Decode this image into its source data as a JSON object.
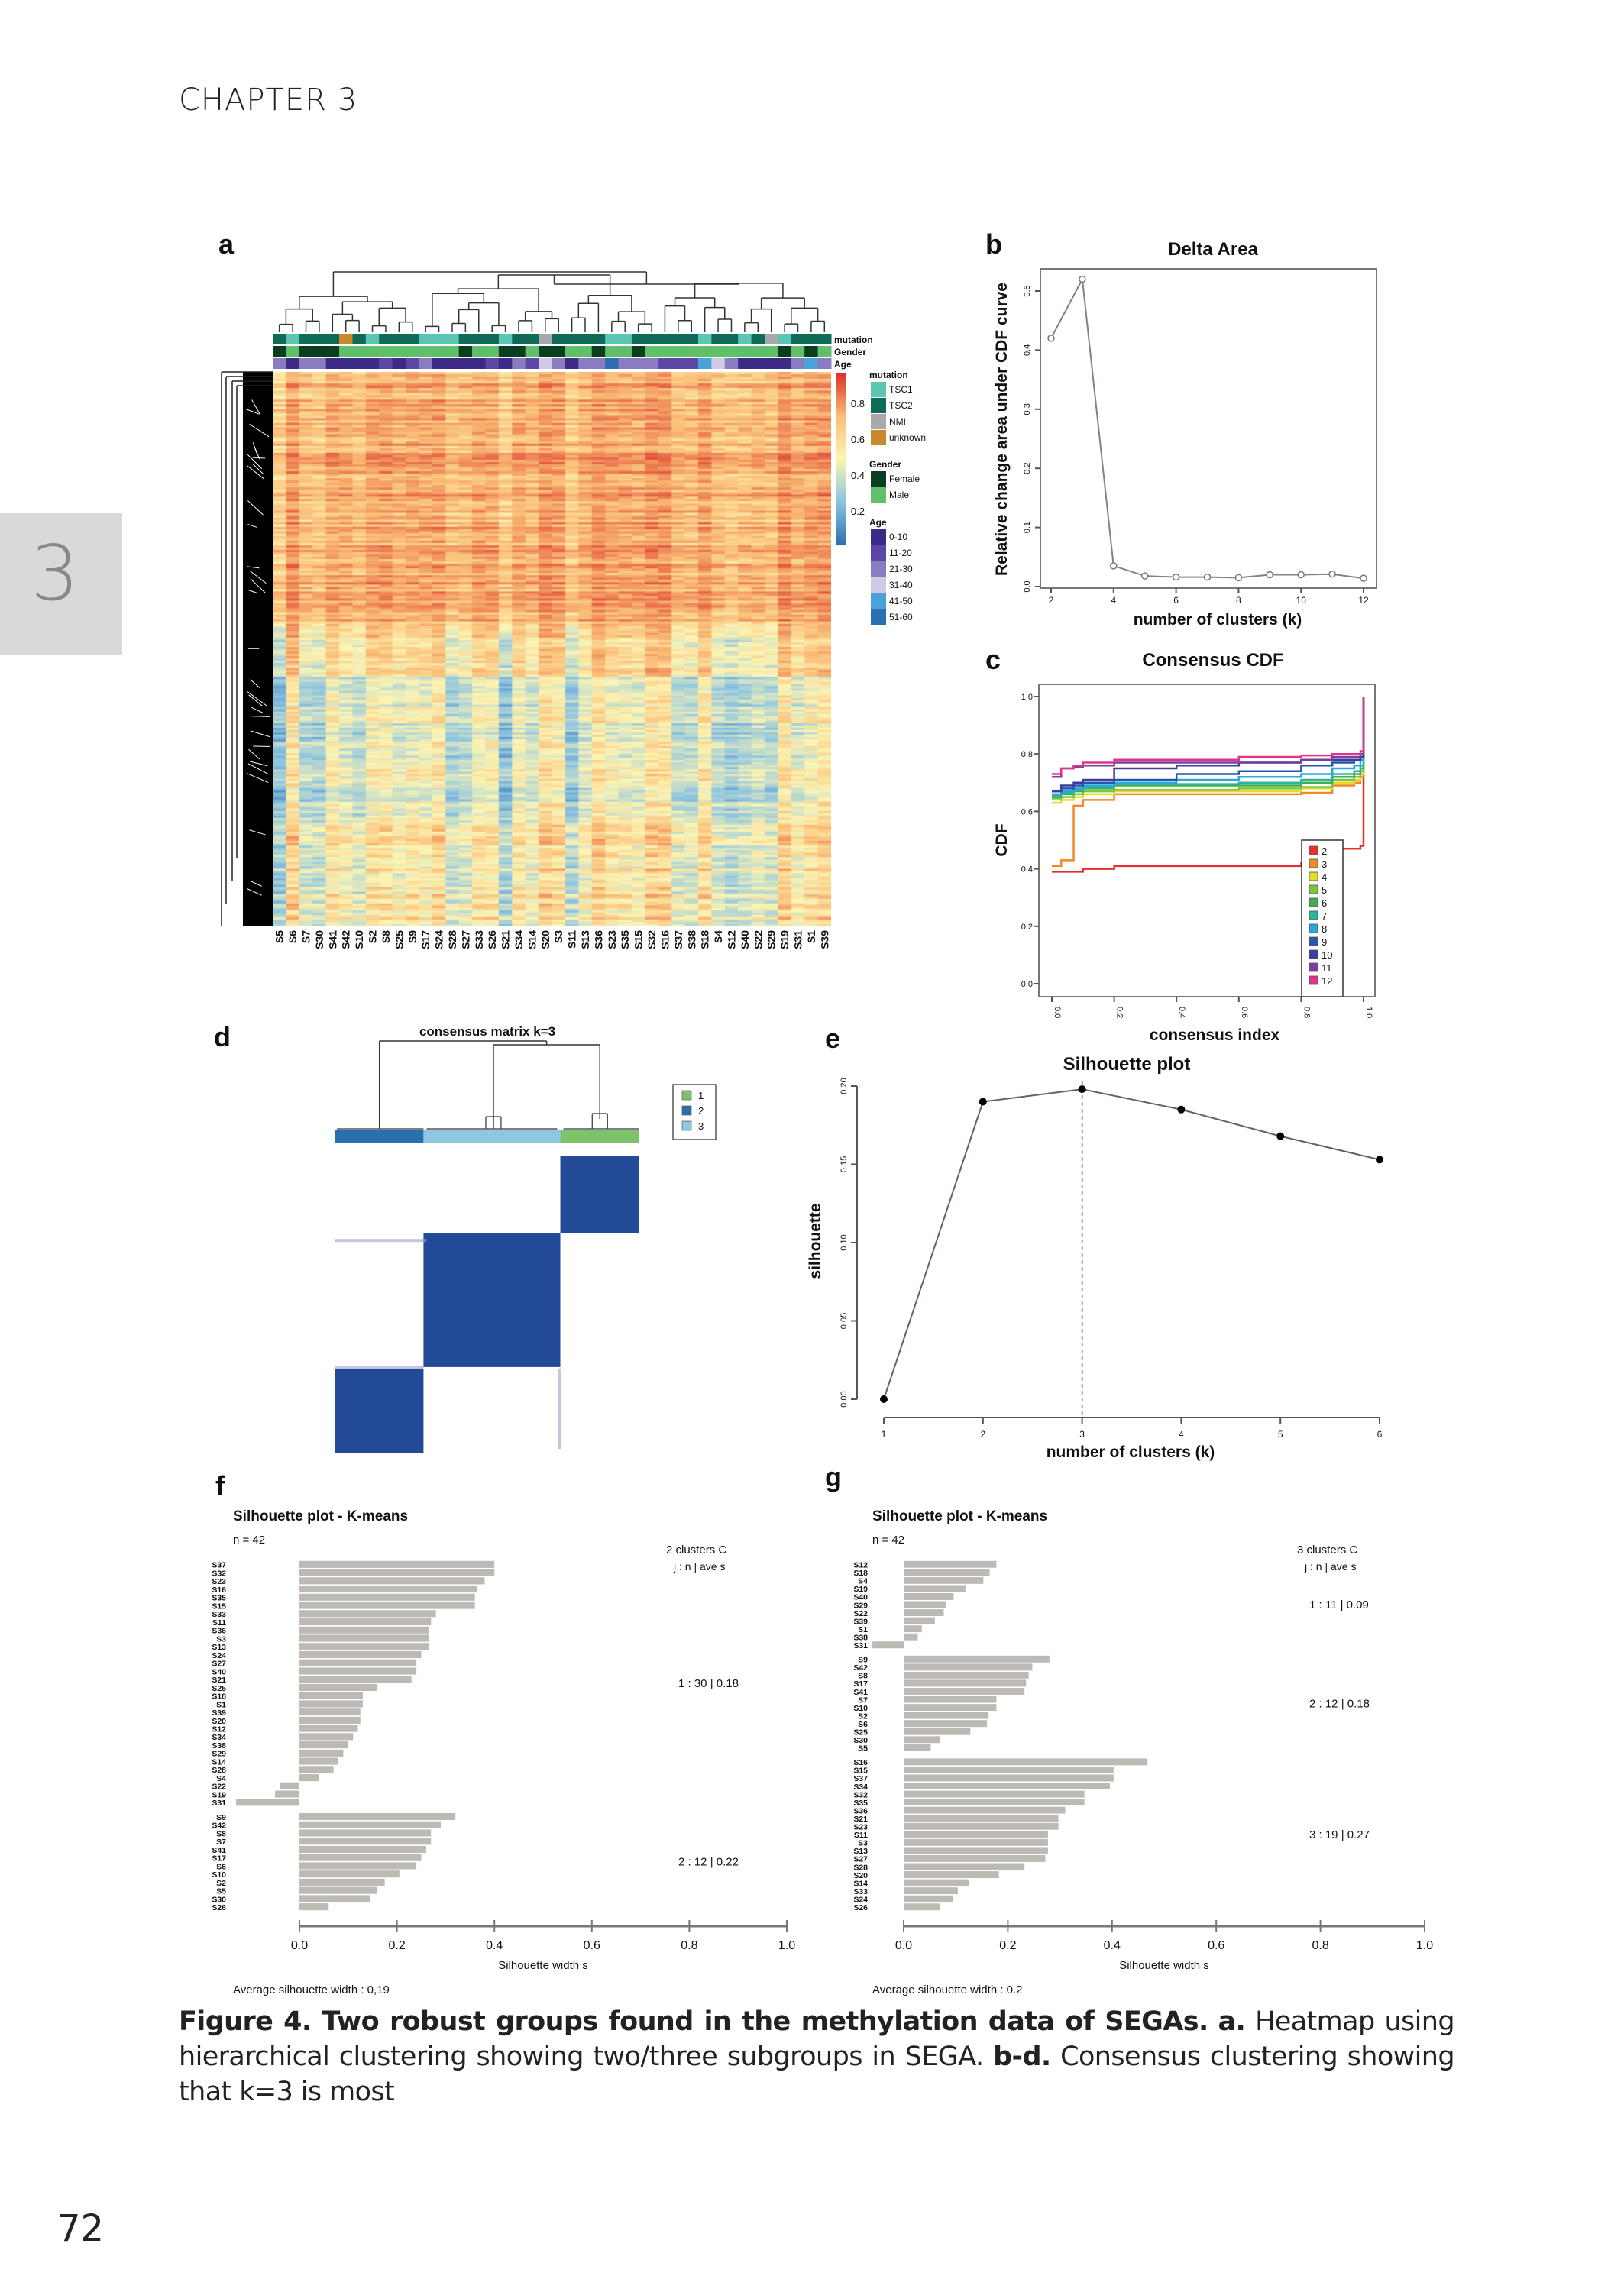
{
  "header": {
    "chapter": "CHAPTER 3",
    "side_tab": "3"
  },
  "page_number": "72",
  "caption": {
    "figure_label": "Figure 4. Two robust groups found in the methylation data of SEGAs.",
    "a_label": "a.",
    "a_text": "Heatmap using hierarchical clustering showing two/three subgroups in SEGA.",
    "bd_label": "b-d.",
    "bd_text": "Consensus clustering showing that k=3 is most"
  },
  "panels": {
    "a": "a",
    "b": "b",
    "c": "c",
    "d": "d",
    "e": "e",
    "f": "f",
    "g": "g"
  },
  "colors": {
    "mutation": {
      "TSC1": "#5cc6b4",
      "TSC2": "#0d6b57",
      "NMI": "#a9a9a9",
      "unknown": "#c98a2b"
    },
    "gender": {
      "Female": "#0b3d20",
      "Male": "#5fbf6a"
    },
    "age": {
      "0-10": "#3b2a86",
      "11-20": "#5c47a6",
      "21-30": "#8a7cc0",
      "31-40": "#cfcbe6",
      "41-50": "#4aa3d8",
      "51-60": "#2c6fb3"
    },
    "cluster": {
      "1": "#7cc36b",
      "2": "#2a6fae",
      "3": "#8ec7e0"
    },
    "matrix_block": "#234a96",
    "bar": "#bdbab6"
  },
  "heatmap": {
    "annotation_labels": [
      "mutation",
      "Gender",
      "Age"
    ],
    "scale_ticks": [
      "0.8",
      "0.6",
      "0.4",
      "0.2"
    ],
    "legend": {
      "mutation": {
        "title": "mutation",
        "items": [
          "TSC1",
          "TSC2",
          "NMI",
          "unknown"
        ]
      },
      "gender": {
        "title": "Gender",
        "items": [
          "Female",
          "Male"
        ]
      },
      "age": {
        "title": "Age",
        "items": [
          "0-10",
          "11-20",
          "21-30",
          "31-40",
          "41-50",
          "51-60"
        ]
      }
    },
    "samples": [
      "S5",
      "S6",
      "S7",
      "S30",
      "S41",
      "S42",
      "S10",
      "S2",
      "S8",
      "S25",
      "S9",
      "S17",
      "S24",
      "S28",
      "S27",
      "S33",
      "S26",
      "S21",
      "S34",
      "S14",
      "S20",
      "S3",
      "S11",
      "S13",
      "S36",
      "S23",
      "S35",
      "S15",
      "S32",
      "S16",
      "S37",
      "S38",
      "S18",
      "S4",
      "S12",
      "S40",
      "S22",
      "S29",
      "S19",
      "S31",
      "S1",
      "S39"
    ],
    "mutation": [
      "TSC2",
      "TSC1",
      "TSC2",
      "TSC2",
      "TSC2",
      "unknown",
      "TSC2",
      "TSC1",
      "TSC2",
      "TSC2",
      "TSC2",
      "TSC1",
      "TSC1",
      "TSC1",
      "TSC2",
      "TSC2",
      "TSC2",
      "TSC1",
      "TSC2",
      "TSC2",
      "NMI",
      "TSC2",
      "TSC2",
      "TSC2",
      "TSC2",
      "TSC1",
      "TSC1",
      "TSC2",
      "TSC2",
      "TSC2",
      "TSC2",
      "TSC2",
      "TSC1",
      "TSC2",
      "TSC2",
      "TSC1",
      "TSC2",
      "NMI",
      "TSC1",
      "TSC2",
      "TSC2",
      "TSC2"
    ],
    "gender": [
      "Female",
      "Male",
      "Female",
      "Female",
      "Female",
      "Male",
      "Male",
      "Male",
      "Male",
      "Male",
      "Male",
      "Male",
      "Male",
      "Male",
      "Female",
      "Male",
      "Male",
      "Female",
      "Female",
      "Male",
      "Female",
      "Female",
      "Male",
      "Male",
      "Female",
      "Male",
      "Male",
      "Female",
      "Male",
      "Male",
      "Male",
      "Male",
      "Male",
      "Male",
      "Male",
      "Male",
      "Male",
      "Male",
      "Female",
      "Male",
      "Female",
      "Male"
    ],
    "age": [
      "21-30",
      "0-10",
      "21-30",
      "21-30",
      "0-10",
      "0-10",
      "0-10",
      "0-10",
      "11-20",
      "0-10",
      "11-20",
      "21-30",
      "0-10",
      "0-10",
      "0-10",
      "0-10",
      "11-20",
      "0-10",
      "21-30",
      "11-20",
      "31-40",
      "21-30",
      "0-10",
      "21-30",
      "21-30",
      "51-60",
      "21-30",
      "21-30",
      "21-30",
      "11-20",
      "11-20",
      "11-20",
      "41-50",
      "31-40",
      "21-30",
      "0-10",
      "0-10",
      "0-10",
      "0-10",
      "21-30",
      "41-50",
      "21-30"
    ]
  },
  "chart_data": [
    {
      "id": "b",
      "type": "line",
      "title": "Delta Area",
      "xlabel": "number of clusters (k)",
      "ylabel": "Relative change area under CDF curve",
      "x": [
        2,
        3,
        4,
        5,
        6,
        7,
        8,
        9,
        10,
        11,
        12
      ],
      "values": [
        0.42,
        0.52,
        0.035,
        0.018,
        0.016,
        0.016,
        0.015,
        0.02,
        0.02,
        0.021,
        0.014
      ],
      "xticks": [
        "2",
        "4",
        "6",
        "8",
        "10",
        "12"
      ],
      "yticks": [
        "0.0",
        "0.1",
        "0.2",
        "0.3",
        "0.4",
        "0.5"
      ],
      "xlim": [
        2,
        12
      ],
      "ylim": [
        0,
        0.5
      ],
      "marker": "open-circle",
      "grid": false
    },
    {
      "id": "c",
      "type": "line",
      "title": "Consensus CDF",
      "xlabel": "consensus index",
      "ylabel": "CDF",
      "x": [
        0,
        0.03,
        0.07,
        0.1,
        0.2,
        0.4,
        0.6,
        0.8,
        0.9,
        0.97,
        0.99,
        1.0
      ],
      "series": [
        {
          "name": "2",
          "color": "#e8302a",
          "values": [
            0.39,
            0.39,
            0.39,
            0.4,
            0.41,
            0.41,
            0.41,
            0.42,
            0.47,
            0.47,
            0.48,
            1.0
          ]
        },
        {
          "name": "3",
          "color": "#f08a24",
          "values": [
            0.41,
            0.43,
            0.62,
            0.64,
            0.66,
            0.66,
            0.66,
            0.665,
            0.69,
            0.7,
            0.72,
            1.0
          ]
        },
        {
          "name": "4",
          "color": "#e3dc2a",
          "values": [
            0.63,
            0.64,
            0.65,
            0.66,
            0.67,
            0.67,
            0.67,
            0.68,
            0.7,
            0.71,
            0.73,
            1.0
          ]
        },
        {
          "name": "5",
          "color": "#7cc542",
          "values": [
            0.645,
            0.65,
            0.66,
            0.67,
            0.675,
            0.675,
            0.68,
            0.685,
            0.71,
            0.72,
            0.74,
            1.0
          ]
        },
        {
          "name": "6",
          "color": "#3fae4f",
          "values": [
            0.65,
            0.66,
            0.67,
            0.68,
            0.69,
            0.69,
            0.69,
            0.7,
            0.72,
            0.73,
            0.75,
            1.0
          ]
        },
        {
          "name": "7",
          "color": "#2bb59c",
          "values": [
            0.655,
            0.665,
            0.675,
            0.685,
            0.695,
            0.695,
            0.7,
            0.71,
            0.73,
            0.74,
            0.76,
            1.0
          ]
        },
        {
          "name": "8",
          "color": "#2aa7df",
          "values": [
            0.66,
            0.67,
            0.68,
            0.69,
            0.7,
            0.71,
            0.72,
            0.73,
            0.75,
            0.76,
            0.78,
            1.0
          ]
        },
        {
          "name": "9",
          "color": "#2457a8",
          "values": [
            0.67,
            0.68,
            0.69,
            0.7,
            0.71,
            0.73,
            0.74,
            0.76,
            0.77,
            0.78,
            0.79,
            1.0
          ]
        },
        {
          "name": "10",
          "color": "#3e3c9e",
          "values": [
            0.67,
            0.69,
            0.7,
            0.71,
            0.75,
            0.76,
            0.77,
            0.78,
            0.78,
            0.78,
            0.79,
            1.0
          ]
        },
        {
          "name": "11",
          "color": "#7b3fa0",
          "values": [
            0.72,
            0.75,
            0.755,
            0.76,
            0.77,
            0.77,
            0.77,
            0.78,
            0.79,
            0.79,
            0.8,
            1.0
          ]
        },
        {
          "name": "12",
          "color": "#e0338c",
          "values": [
            0.73,
            0.75,
            0.76,
            0.77,
            0.78,
            0.78,
            0.79,
            0.795,
            0.8,
            0.8,
            0.81,
            1.0
          ]
        }
      ],
      "xticks": [
        "0.0",
        "0.2",
        "0.4",
        "0.6",
        "0.8",
        "1.0"
      ],
      "yticks": [
        "0.0",
        "0.2",
        "0.4",
        "0.6",
        "0.8",
        "1.0"
      ],
      "xlim": [
        0,
        1
      ],
      "ylim": [
        0,
        1
      ],
      "legend": "bottom-right",
      "grid": false
    },
    {
      "id": "d",
      "type": "heatmap",
      "title": "consensus matrix k=3",
      "cluster_order": [
        "2",
        "3",
        "1"
      ],
      "cluster_fractions": [
        0.29,
        0.45,
        0.26
      ],
      "legend": [
        "1",
        "2",
        "3"
      ],
      "legend_placement": "top-right"
    },
    {
      "id": "e",
      "type": "line",
      "title": "Silhouette plot",
      "xlabel": "number of clusters (k)",
      "ylabel": "silhouette",
      "x": [
        1,
        2,
        3,
        4,
        5,
        6
      ],
      "values": [
        0.0,
        0.19,
        0.198,
        0.185,
        0.168,
        0.153
      ],
      "xticks": [
        "1",
        "2",
        "3",
        "4",
        "5",
        "6"
      ],
      "yticks": [
        "0.00",
        "0.05",
        "0.10",
        "0.15",
        "0.20"
      ],
      "xlim": [
        1,
        6
      ],
      "ylim": [
        0,
        0.2
      ],
      "vline_x": 3,
      "marker": "filled-circle"
    },
    {
      "id": "f",
      "type": "bar",
      "orientation": "horizontal",
      "title": "Silhouette plot - K-means",
      "n_label": "n = 42",
      "header": [
        "2 clusters C",
        "j : n",
        "| ave",
        "s"
      ],
      "xlabel": "Silhouette width s",
      "footer": "Average silhouette width : 0,19",
      "xticks": [
        "0.0",
        "0.2",
        "0.4",
        "0.6",
        "0.8",
        "1.0"
      ],
      "xlim": [
        0,
        1
      ],
      "clusters": [
        {
          "summary": "1 :  30  |  0.18",
          "labels": [
            "S37",
            "S32",
            "S23",
            "S16",
            "S35",
            "S15",
            "S33",
            "S11",
            "S36",
            "S3",
            "S13",
            "S24",
            "S27",
            "S40",
            "S21",
            "S25",
            "S18",
            "S1",
            "S39",
            "S20",
            "S12",
            "S34",
            "S38",
            "S29",
            "S14",
            "S28",
            "S4",
            "S22",
            "S19",
            "S31"
          ],
          "values": [
            0.4,
            0.4,
            0.38,
            0.365,
            0.36,
            0.36,
            0.28,
            0.27,
            0.265,
            0.265,
            0.265,
            0.25,
            0.24,
            0.24,
            0.23,
            0.16,
            0.13,
            0.13,
            0.125,
            0.125,
            0.12,
            0.11,
            0.1,
            0.09,
            0.08,
            0.07,
            0.04,
            -0.04,
            -0.05,
            -0.13
          ]
        },
        {
          "summary": "2 :  12  |  0.22",
          "labels": [
            "S9",
            "S42",
            "S8",
            "S7",
            "S41",
            "S17",
            "S6",
            "S10",
            "S2",
            "S5",
            "S30",
            "S26"
          ],
          "values": [
            0.32,
            0.29,
            0.27,
            0.27,
            0.26,
            0.25,
            0.24,
            0.205,
            0.175,
            0.16,
            0.145,
            0.06
          ]
        }
      ]
    },
    {
      "id": "g",
      "type": "bar",
      "orientation": "horizontal",
      "title": "Silhouette plot - K-means",
      "n_label": "n = 42",
      "header": [
        "3 clusters C",
        "j : n",
        "| ave",
        "s"
      ],
      "xlabel": "Silhouette width s",
      "footer": "Average silhouette width : 0.2",
      "xticks": [
        "0.0",
        "0.2",
        "0.4",
        "0.6",
        "0.8",
        "1.0"
      ],
      "xlim": [
        0,
        1
      ],
      "clusters": [
        {
          "summary": "1 :  11  |  0.09",
          "labels": [
            "S12",
            "S18",
            "S4",
            "S19",
            "S40",
            "S29",
            "S22",
            "S39",
            "S1",
            "S38",
            "S31"
          ],
          "values": [
            0.178,
            0.165,
            0.153,
            0.119,
            0.096,
            0.082,
            0.077,
            0.06,
            0.035,
            0.027,
            -0.06
          ]
        },
        {
          "summary": "2 :  12  |  0.18",
          "labels": [
            "S9",
            "S42",
            "S8",
            "S17",
            "S41",
            "S7",
            "S10",
            "S2",
            "S6",
            "S25",
            "S30",
            "S5"
          ],
          "values": [
            0.28,
            0.247,
            0.24,
            0.235,
            0.232,
            0.178,
            0.178,
            0.163,
            0.16,
            0.128,
            0.07,
            0.052
          ]
        },
        {
          "summary": "3 :  19  |  0.27",
          "labels": [
            "S16",
            "S15",
            "S37",
            "S34",
            "S32",
            "S35",
            "S36",
            "S21",
            "S23",
            "S11",
            "S3",
            "S13",
            "S27",
            "S28",
            "S20",
            "S14",
            "S33",
            "S24",
            "S26"
          ],
          "values": [
            0.468,
            0.403,
            0.403,
            0.396,
            0.347,
            0.347,
            0.31,
            0.297,
            0.297,
            0.277,
            0.277,
            0.277,
            0.272,
            0.232,
            0.183,
            0.126,
            0.104,
            0.094,
            0.07
          ]
        }
      ]
    }
  ]
}
